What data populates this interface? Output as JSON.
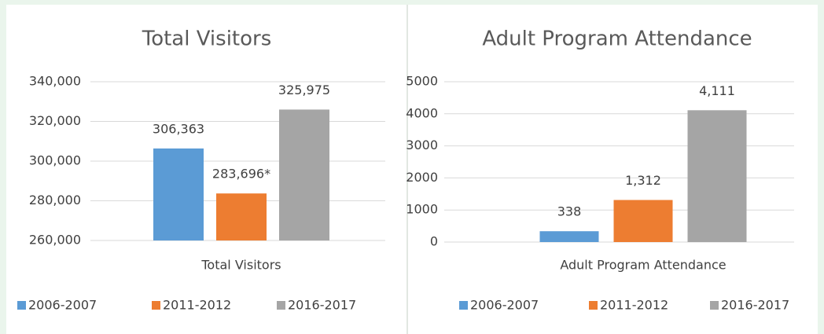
{
  "chart_data": [
    {
      "type": "bar",
      "title": "Total Visitors",
      "categories": [
        "Total Visitors"
      ],
      "series": [
        {
          "name": "2006-2007",
          "color": "#5b9bd5",
          "values": [
            306363
          ],
          "value_labels": [
            "306,363"
          ]
        },
        {
          "name": "2011-2012",
          "color": "#ed7d31",
          "values": [
            283696
          ],
          "value_labels": [
            "283,696*"
          ]
        },
        {
          "name": "2016-2017",
          "color": "#a5a5a5",
          "values": [
            325975
          ],
          "value_labels": [
            "325,975"
          ]
        }
      ],
      "ylim": [
        260000,
        340000
      ],
      "yticks": [
        {
          "value": 260000,
          "label": "260,000"
        },
        {
          "value": 280000,
          "label": "280,000"
        },
        {
          "value": 300000,
          "label": "300,000"
        },
        {
          "value": 320000,
          "label": "320,000"
        },
        {
          "value": 340000,
          "label": "340,000"
        }
      ],
      "grid": true,
      "legend": "bottom"
    },
    {
      "type": "bar",
      "title": "Adult Program Attendance",
      "categories": [
        "Adult Program Attendance"
      ],
      "series": [
        {
          "name": "2006-2007",
          "color": "#5b9bd5",
          "values": [
            338
          ]
        },
        {
          "name": "2011-2012",
          "color": "#ed7d31",
          "values": [
            1312
          ],
          "value_labels": [
            "1,312"
          ]
        },
        {
          "name": "2016-2017",
          "color": "#a5a5a5",
          "values": [
            4111
          ],
          "value_labels": [
            "4,111"
          ]
        }
      ],
      "ylim": [
        0,
        5000
      ],
      "yticks": [
        0,
        1000,
        2000,
        3000,
        4000,
        5000
      ],
      "grid": true,
      "legend": "bottom"
    }
  ]
}
